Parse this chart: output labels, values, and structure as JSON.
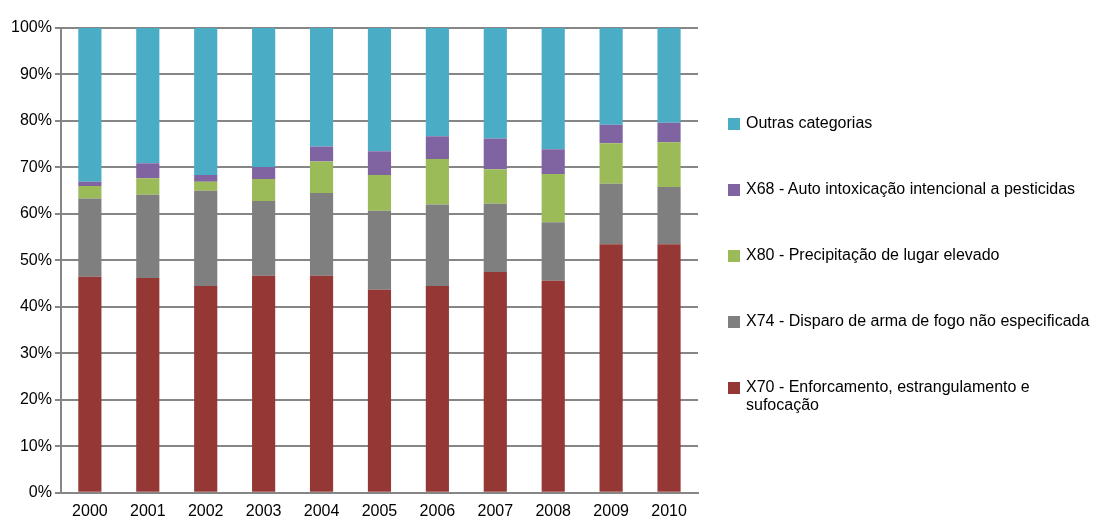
{
  "chart_data": {
    "type": "bar",
    "stacked": true,
    "categories": [
      "2000",
      "2001",
      "2002",
      "2003",
      "2004",
      "2005",
      "2006",
      "2007",
      "2008",
      "2009",
      "2010"
    ],
    "series": [
      {
        "name": "X70 - Enforcamento, estrangulamento e sufocação",
        "color": "#953735",
        "values": [
          46.5,
          46.2,
          44.5,
          46.7,
          46.7,
          43.7,
          44.5,
          47.5,
          45.6,
          53.5,
          53.5
        ]
      },
      {
        "name": "X74 - Disparo de arma de fogo não especificada",
        "color": "#7f7f7f",
        "values": [
          16.8,
          17.9,
          20.5,
          16.1,
          17.8,
          17.0,
          17.5,
          14.7,
          12.6,
          13.0,
          12.3
        ]
      },
      {
        "name": "X80 - Precipitação de lugar elevado",
        "color": "#9bbb59",
        "values": [
          2.7,
          3.6,
          1.9,
          4.7,
          6.8,
          7.7,
          9.8,
          7.4,
          10.4,
          8.7,
          9.6
        ]
      },
      {
        "name": "X68 - Auto intoxicação intencional a pesticidas",
        "color": "#8064a2",
        "values": [
          0.9,
          3.2,
          1.5,
          2.6,
          3.2,
          5.1,
          4.9,
          6.6,
          5.3,
          4.0,
          4.2
        ]
      },
      {
        "name": "Outras categorias",
        "color": "#4bacc6",
        "values": [
          33.1,
          29.1,
          31.6,
          29.9,
          25.5,
          26.5,
          23.3,
          23.8,
          26.1,
          20.8,
          20.4
        ]
      }
    ],
    "ylim": [
      0,
      100
    ],
    "yticks": [
      {
        "value": 0,
        "label": "0%"
      },
      {
        "value": 10,
        "label": "10%"
      },
      {
        "value": 20,
        "label": "20%"
      },
      {
        "value": 30,
        "label": "30%"
      },
      {
        "value": 40,
        "label": "40%"
      },
      {
        "value": 50,
        "label": "50%"
      },
      {
        "value": 60,
        "label": "60%"
      },
      {
        "value": 70,
        "label": "70%"
      },
      {
        "value": 80,
        "label": "80%"
      },
      {
        "value": 90,
        "label": "90%"
      },
      {
        "value": 100,
        "label": "100%"
      }
    ],
    "grid": "y",
    "legend": "right"
  }
}
